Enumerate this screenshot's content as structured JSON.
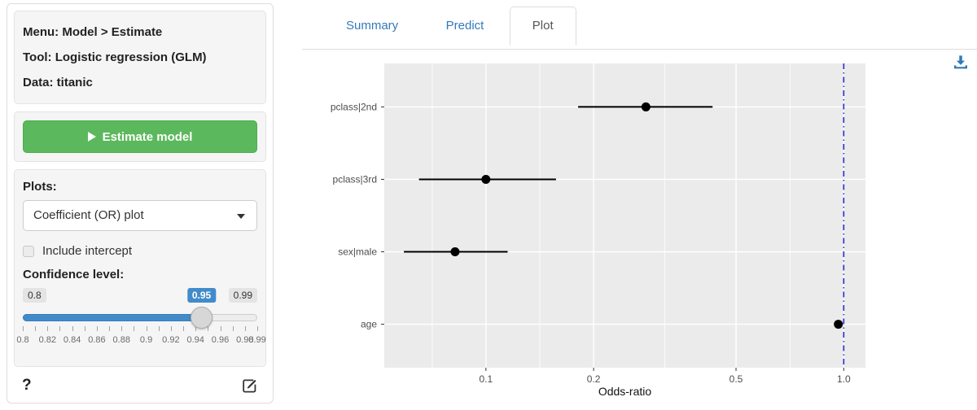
{
  "sidebar": {
    "info": {
      "menu": "Menu: Model > Estimate",
      "tool": "Tool: Logistic regression (GLM)",
      "data": "Data: titanic"
    },
    "estimate_button": {
      "label": "Estimate model",
      "icon": "play-icon",
      "color": "#5cb85c"
    },
    "plots": {
      "label": "Plots:",
      "selected_option": "Coefficient (OR) plot",
      "include_intercept": {
        "label": "Include intercept",
        "checked": false
      }
    },
    "confidence": {
      "label": "Confidence level:",
      "min": 0.8,
      "max": 0.99,
      "value": 0.95,
      "min_label": "0.8",
      "max_label": "0.99",
      "value_label": "0.95",
      "accent": "#428bca",
      "grid": [
        {
          "label": "0.8",
          "value": 0.8
        },
        {
          "label": "0.82",
          "value": 0.82
        },
        {
          "label": "0.84",
          "value": 0.84
        },
        {
          "label": "0.86",
          "value": 0.86
        },
        {
          "label": "0.88",
          "value": 0.88
        },
        {
          "label": "0.9",
          "value": 0.9
        },
        {
          "label": "0.92",
          "value": 0.92
        },
        {
          "label": "0.94",
          "value": 0.94
        },
        {
          "label": "0.96",
          "value": 0.96
        },
        {
          "label": "0.98",
          "value": 0.98
        },
        {
          "label": "0.99",
          "value": 0.99
        }
      ]
    },
    "help_label": "?",
    "report_icon": "edit-icon"
  },
  "tabs": [
    {
      "label": "Summary",
      "active": false
    },
    {
      "label": "Predict",
      "active": false
    },
    {
      "label": "Plot",
      "active": true
    }
  ],
  "download_icon": "download-icon",
  "icon_color": "#337ab7",
  "chart_data": {
    "type": "scatter",
    "subtype": "coefficient-odds-ratio-plot-with-error-bars",
    "title": "",
    "xlabel": "Odds-ratio",
    "ylabel": "",
    "categories": [
      "pclass|2nd",
      "pclass|3rd",
      "sex|male",
      "age"
    ],
    "series": [
      {
        "name": "odds_ratio",
        "values": [
          0.28,
          0.1,
          0.082,
          0.966
        ]
      },
      {
        "name": "ci_low",
        "values": [
          0.181,
          0.065,
          0.059,
          0.953
        ]
      },
      {
        "name": "ci_high",
        "values": [
          0.43,
          0.157,
          0.115,
          0.979
        ]
      }
    ],
    "xscale": "log10",
    "xlim": [
      0.052,
      1.15
    ],
    "xticks": [
      0.1,
      0.2,
      0.5,
      1.0
    ],
    "xtick_labels": [
      "0.1",
      "0.2",
      "0.5",
      "1.0"
    ],
    "minor_gridlines": [
      0.0708,
      0.1414,
      0.3162,
      0.7079
    ],
    "grid": "on",
    "legend": "none",
    "ref_line": {
      "x": 1.0,
      "color": "#2B2BD5",
      "style": "dotdash"
    },
    "panel_bg": "#EBEBEB",
    "grid_color": "#FFFFFF",
    "point_color": "#000000",
    "axis_text_color": "#4d4d4d"
  }
}
